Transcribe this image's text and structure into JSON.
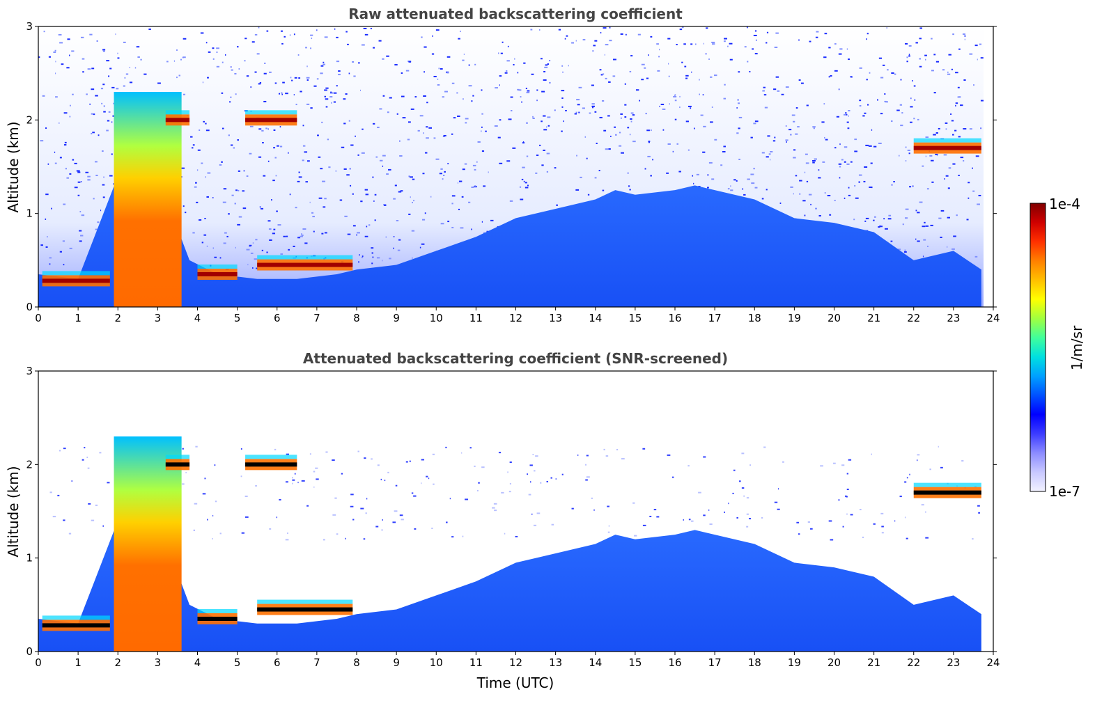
{
  "chart_data": [
    {
      "type": "heatmap",
      "title": "Raw attenuated backscattering coefficient",
      "xlabel": "",
      "ylabel": "Altitude (km)",
      "xlim": [
        0,
        24
      ],
      "ylim": [
        0,
        3
      ],
      "xticks": [
        "0",
        "1",
        "2",
        "3",
        "4",
        "5",
        "6",
        "7",
        "8",
        "9",
        "10",
        "11",
        "12",
        "13",
        "14",
        "15",
        "16",
        "17",
        "18",
        "19",
        "20",
        "21",
        "22",
        "23",
        "24"
      ],
      "yticks": [
        "0",
        "1",
        "2",
        "3"
      ],
      "screened": false,
      "boundary_layer_top_km": [
        [
          0,
          0.35
        ],
        [
          1,
          0.3
        ],
        [
          2,
          1.4
        ],
        [
          3,
          1.4
        ],
        [
          3.8,
          0.5
        ],
        [
          4.5,
          0.35
        ],
        [
          5.5,
          0.3
        ],
        [
          6.5,
          0.3
        ],
        [
          7.5,
          0.35
        ],
        [
          8,
          0.4
        ],
        [
          9,
          0.45
        ],
        [
          10,
          0.6
        ],
        [
          11,
          0.75
        ],
        [
          12,
          0.95
        ],
        [
          13,
          1.05
        ],
        [
          14,
          1.15
        ],
        [
          14.5,
          1.25
        ],
        [
          15,
          1.2
        ],
        [
          16,
          1.25
        ],
        [
          16.5,
          1.3
        ],
        [
          17,
          1.25
        ],
        [
          18,
          1.15
        ],
        [
          19,
          0.95
        ],
        [
          20,
          0.9
        ],
        [
          21,
          0.8
        ],
        [
          22,
          0.5
        ],
        [
          23,
          0.6
        ],
        [
          23.7,
          0.4
        ]
      ],
      "cloud_layers": [
        {
          "t_start": 0.1,
          "t_end": 1.8,
          "alt_km": 0.28,
          "intensity": "high"
        },
        {
          "t_start": 1.9,
          "t_end": 3.6,
          "alt_km": 1.4,
          "intensity": "high"
        },
        {
          "t_start": 3.2,
          "t_end": 3.8,
          "alt_km": 2.0,
          "intensity": "high"
        },
        {
          "t_start": 4.0,
          "t_end": 5.0,
          "alt_km": 0.35,
          "intensity": "high"
        },
        {
          "t_start": 5.5,
          "t_end": 7.9,
          "alt_km": 0.45,
          "intensity": "high"
        },
        {
          "t_start": 5.2,
          "t_end": 6.5,
          "alt_km": 2.0,
          "intensity": "high"
        },
        {
          "t_start": 22.0,
          "t_end": 23.7,
          "alt_km": 1.7,
          "intensity": "high"
        }
      ]
    },
    {
      "type": "heatmap",
      "title": "Attenuated backscattering coefficient (SNR-screened)",
      "xlabel": "Time (UTC)",
      "ylabel": "Altitude (km)",
      "xlim": [
        0,
        24
      ],
      "ylim": [
        0,
        3
      ],
      "xticks": [
        "0",
        "1",
        "2",
        "3",
        "4",
        "5",
        "6",
        "7",
        "8",
        "9",
        "10",
        "11",
        "12",
        "13",
        "14",
        "15",
        "16",
        "17",
        "18",
        "19",
        "20",
        "21",
        "22",
        "23",
        "24"
      ],
      "yticks": [
        "0",
        "1",
        "2",
        "3"
      ],
      "screened": true
    }
  ],
  "colorbar": {
    "label": "1/m/sr",
    "max_label": "1e-4",
    "min_label": "1e-7",
    "colors": [
      "#f2f2ff",
      "#c8c8ff",
      "#8c8cff",
      "#3c3cff",
      "#0000ff",
      "#0050ff",
      "#00a0ff",
      "#00e0e0",
      "#40ff9c",
      "#a0ff40",
      "#ffff00",
      "#ffc000",
      "#ff8000",
      "#ff3000",
      "#d00000",
      "#800000"
    ]
  }
}
